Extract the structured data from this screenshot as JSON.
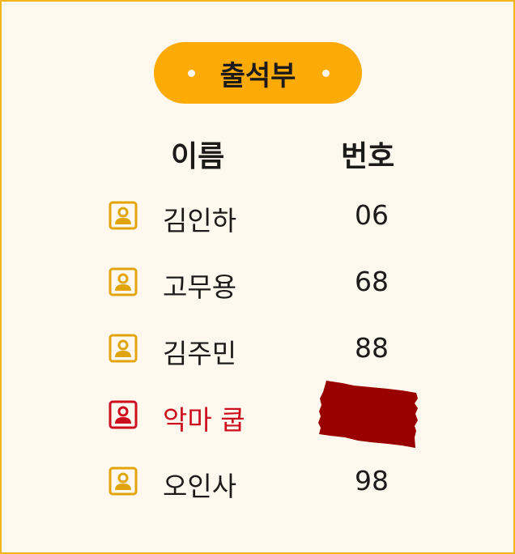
{
  "title": "출석부",
  "headers": {
    "name": "이름",
    "number": "번호"
  },
  "rows": [
    {
      "name": "김인하",
      "number": "06"
    },
    {
      "name": "고무용",
      "number": "68"
    },
    {
      "name": "김주민",
      "number": "88"
    },
    {
      "name": "악마 쿱",
      "number": ""
    },
    {
      "name": "오인사",
      "number": "98"
    }
  ],
  "icons": {
    "row": "person-badge-icon"
  },
  "colors": {
    "accent": "#fbaa06",
    "icon": "#e0a50d",
    "highlight": "#cc0f1e",
    "redaction": "#990000",
    "background": "#fff8ee",
    "border": "#f2b51c"
  }
}
